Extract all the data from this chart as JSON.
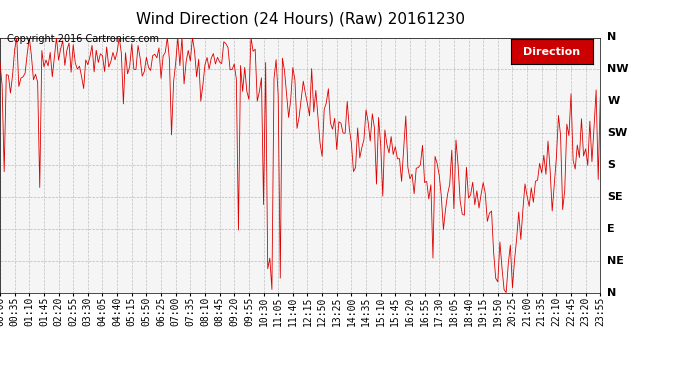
{
  "title": "Wind Direction (24 Hours) (Raw) 20161230",
  "copyright": "Copyright 2016 Cartronics.com",
  "legend_label": "Direction",
  "legend_bg": "#cc0000",
  "legend_fg": "#ffffff",
  "background_color": "#ffffff",
  "plot_bg": "#f5f5f5",
  "line_color": "#dd0000",
  "grid_color": "#bbbbbb",
  "ytick_labels": [
    "N",
    "NW",
    "W",
    "SW",
    "S",
    "SE",
    "E",
    "NE",
    "N"
  ],
  "ytick_values": [
    360,
    315,
    270,
    225,
    180,
    135,
    90,
    45,
    0
  ],
  "ylim": [
    0,
    360
  ],
  "title_fontsize": 11,
  "tick_fontsize": 7,
  "copyright_fontsize": 7,
  "seed": 42
}
